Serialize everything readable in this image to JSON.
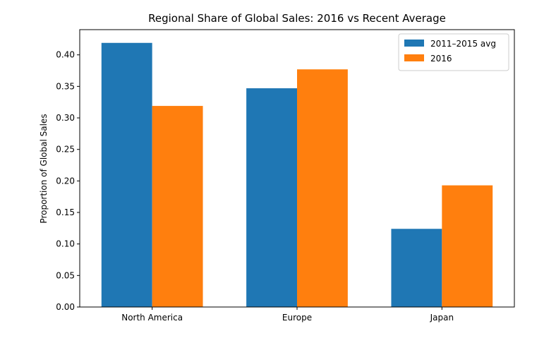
{
  "chart_data": {
    "type": "bar",
    "title": "Regional Share of Global Sales: 2016 vs Recent Average",
    "xlabel": "",
    "ylabel": "Proportion of Global Sales",
    "categories": [
      "North America",
      "Europe",
      "Japan"
    ],
    "series": [
      {
        "name": "2011–2015 avg",
        "color": "#1f77b4",
        "values": [
          0.419,
          0.347,
          0.124
        ]
      },
      {
        "name": "2016",
        "color": "#ff7f0e",
        "values": [
          0.319,
          0.377,
          0.193
        ]
      }
    ],
    "ylim": [
      0,
      0.44
    ],
    "yticks": [
      "0.00",
      "0.05",
      "0.10",
      "0.15",
      "0.20",
      "0.25",
      "0.30",
      "0.35",
      "0.40"
    ],
    "grid": false,
    "legend_position": "top-right"
  }
}
